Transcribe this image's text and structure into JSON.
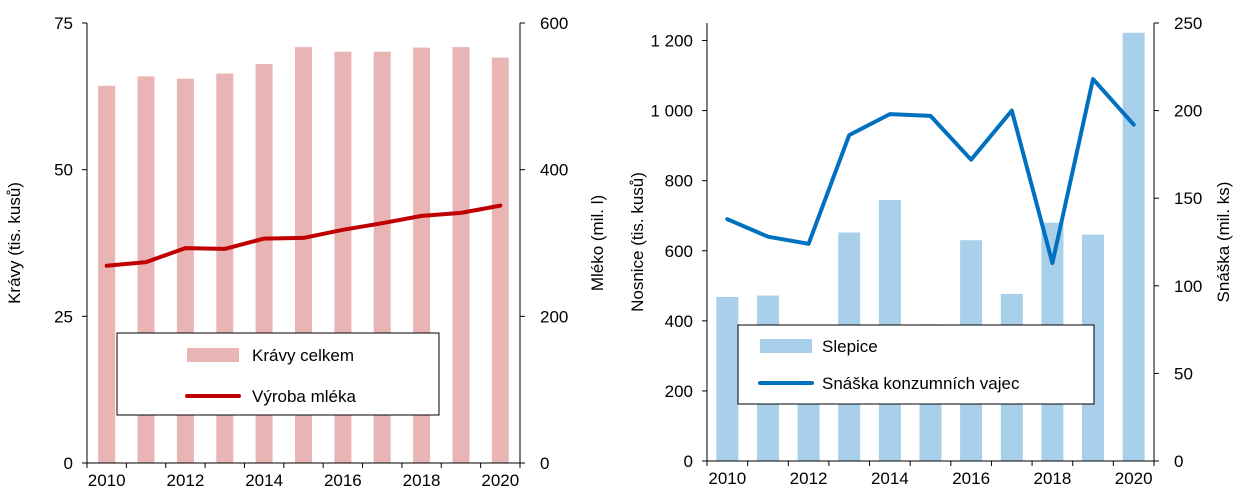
{
  "chart_data": [
    {
      "type": "bar",
      "categories": [
        "2010",
        "2011",
        "2012",
        "2013",
        "2014",
        "2015",
        "2016",
        "2017",
        "2018",
        "2019",
        "2020"
      ],
      "x_tick_labels": [
        "2010",
        "2012",
        "2014",
        "2016",
        "2018",
        "2020"
      ],
      "ylabel": "Krávy (tis. kusů)",
      "y2label": "Mléko (mil. l)",
      "ylim": [
        0,
        75
      ],
      "y_ticks": [
        "0",
        "25",
        "50",
        "75"
      ],
      "y2lim": [
        0,
        600
      ],
      "y2_ticks": [
        "0",
        "200",
        "400",
        "600"
      ],
      "grid": false,
      "legend_position": "bottom-center",
      "series": [
        {
          "name": "Krávy celkem",
          "kind": "bar",
          "axis": "left",
          "color": "#e8b4b4",
          "values": [
            64.3,
            65.9,
            65.5,
            66.4,
            68.0,
            70.9,
            70.1,
            70.1,
            70.8,
            70.9,
            69.1
          ]
        },
        {
          "name": "Výroba mléka",
          "kind": "line",
          "axis": "right",
          "color": "#c00000",
          "values": [
            269,
            274,
            293,
            292,
            306,
            307,
            318,
            327,
            337,
            341,
            351
          ]
        }
      ]
    },
    {
      "type": "bar",
      "categories": [
        "2010",
        "2011",
        "2012",
        "2013",
        "2014",
        "2015",
        "2016",
        "2017",
        "2018",
        "2019",
        "2020"
      ],
      "x_tick_labels": [
        "2010",
        "2012",
        "2014",
        "2016",
        "2018",
        "2020"
      ],
      "ylabel": "Nosnice (tis. kusů)",
      "y2label": "Snáška (mil. ks)",
      "ylim": [
        0,
        1250
      ],
      "y_ticks": [
        "0",
        "200",
        "400",
        "600",
        "800",
        "1 000",
        "1 200"
      ],
      "y2lim": [
        0,
        250
      ],
      "y2_ticks": [
        "0",
        "50",
        "100",
        "150",
        "200",
        "250"
      ],
      "grid": false,
      "legend_position": "bottom-center",
      "series": [
        {
          "name": "Slepice",
          "kind": "bar",
          "axis": "left",
          "color": "#a9d0eb",
          "values": [
            468,
            472,
            340,
            652,
            745,
            390,
            630,
            477,
            680,
            646,
            1222
          ]
        },
        {
          "name": "Snáška konzumních vajec",
          "kind": "line",
          "axis": "right",
          "color": "#0070c0",
          "values": [
            138,
            128,
            124,
            186,
            198,
            197,
            172,
            200,
            113,
            218,
            192
          ]
        }
      ]
    }
  ]
}
